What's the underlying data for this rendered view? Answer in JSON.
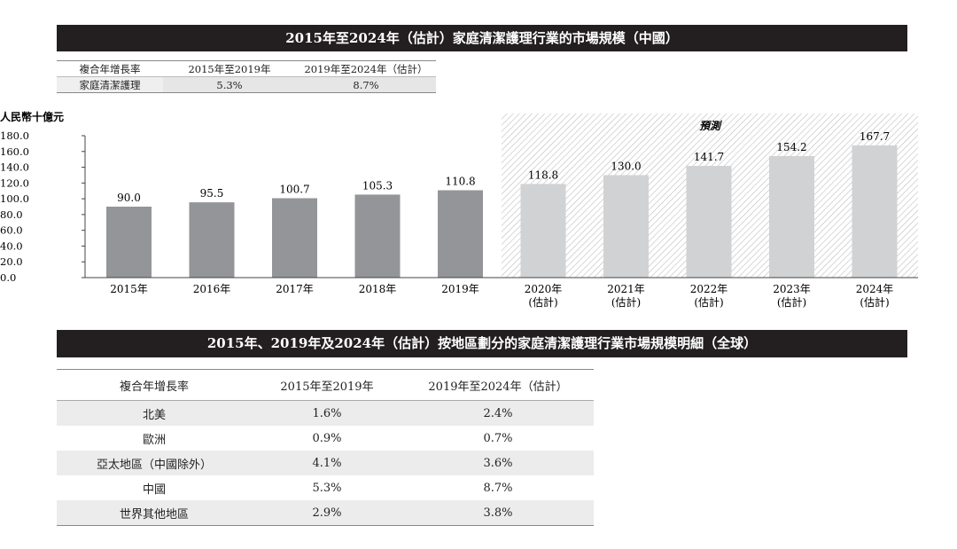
{
  "title_market": "2015年至2024年（估計）家庭清潔護理行業的市場規模（中國）",
  "cagr_table": {
    "headers": [
      "複合年增長率",
      "2015年至2019年",
      "2019年至2024年（估計）"
    ],
    "row": [
      "家庭清潔護理",
      "5.3%",
      "8.7%"
    ]
  },
  "chart_data": {
    "type": "bar",
    "title": "2015年至2024年（估計）家庭清潔護理行業的市場規模（中國）",
    "ylabel": "人民幣十億元",
    "xlabel": "",
    "ylim": [
      0,
      180
    ],
    "yticks": [
      "0.0",
      "20.0",
      "40.0",
      "60.0",
      "80.0",
      "100.0",
      "120.0",
      "140.0",
      "160.0",
      "180.0"
    ],
    "categories": [
      "2015年",
      "2016年",
      "2017年",
      "2018年",
      "2019年",
      "2020年",
      "2021年",
      "2022年",
      "2023年",
      "2024年"
    ],
    "category_sublabels": [
      "",
      "",
      "",
      "",
      "",
      "(估計)",
      "(估計)",
      "(估計)",
      "(估計)",
      "(估計)"
    ],
    "values": [
      90.0,
      95.5,
      100.7,
      105.3,
      110.8,
      118.8,
      130.0,
      141.7,
      154.2,
      167.7
    ],
    "value_labels": [
      "90.0",
      "95.5",
      "100.7",
      "105.3",
      "110.8",
      "118.8",
      "130.0",
      "141.7",
      "154.2",
      "167.7"
    ],
    "forecast_label": "預測",
    "forecast_start_index": 5,
    "colors": {
      "actual": "#939598",
      "forecast": "#d1d2d4",
      "hatch": "#bdbdbd"
    }
  },
  "title_region": "2015年、2019年及2024年（估計）按地區劃分的家庭清潔護理行業市場規模明細（全球）",
  "region_table": {
    "headers": [
      "複合年增長率",
      "2015年至2019年",
      "2019年至2024年（估計）"
    ],
    "rows": [
      [
        "北美",
        "1.6%",
        "2.4%"
      ],
      [
        "歐洲",
        "0.9%",
        "0.7%"
      ],
      [
        "亞太地區（中國除外）",
        "4.1%",
        "3.6%"
      ],
      [
        "中國",
        "5.3%",
        "8.7%"
      ],
      [
        "世界其他地區",
        "2.9%",
        "3.8%"
      ]
    ]
  }
}
